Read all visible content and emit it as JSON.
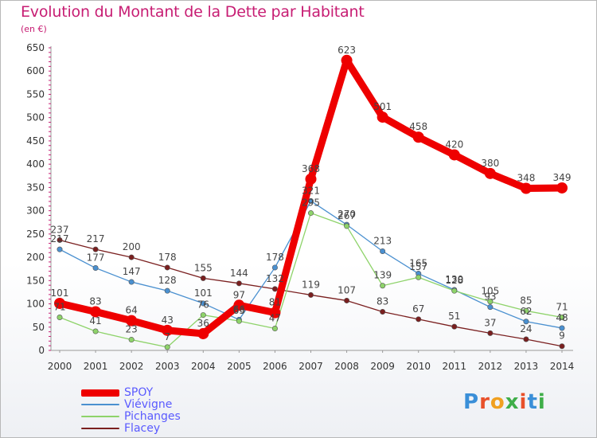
{
  "title": "Evolution du Montant de la Dette par Habitant",
  "subtitle": "(en €)",
  "logo": {
    "text": "Proxiti",
    "colors": [
      "#3a8fd8",
      "#e8502a",
      "#f0a020",
      "#3fae49",
      "#e8502a",
      "#3a8fd8",
      "#3fae49"
    ]
  },
  "chart_data": {
    "type": "line",
    "x": [
      "2000",
      "2001",
      "2002",
      "2003",
      "2004",
      "2005",
      "2006",
      "2007",
      "2008",
      "2009",
      "2010",
      "2011",
      "2012",
      "2013",
      "2014"
    ],
    "ylim": [
      0,
      650
    ],
    "yticks": [
      0,
      50,
      100,
      150,
      200,
      250,
      300,
      350,
      400,
      450,
      500,
      550,
      600,
      650
    ],
    "grid": false,
    "legend": "bottom-left",
    "series": [
      {
        "name": "SPOY",
        "color": "#ee0000",
        "values": [
          101,
          83,
          64,
          43,
          36,
          97,
          81,
          368,
          623,
          501,
          458,
          420,
          380,
          348,
          349
        ]
      },
      {
        "name": "Viévigne",
        "color": "#4a90d0",
        "values": [
          217,
          177,
          147,
          128,
          101,
          66,
          178,
          321,
          270,
          213,
          165,
          130,
          93,
          62,
          48
        ]
      },
      {
        "name": "Pichanges",
        "color": "#8ed36a",
        "values": [
          71,
          41,
          23,
          7,
          76,
          63,
          47,
          295,
          267,
          139,
          157,
          128,
          105,
          85,
          71
        ]
      },
      {
        "name": "Flacey",
        "color": "#7a1f1f",
        "values": [
          237,
          217,
          200,
          178,
          155,
          144,
          132,
          119,
          107,
          83,
          67,
          51,
          37,
          24,
          9
        ]
      }
    ]
  }
}
